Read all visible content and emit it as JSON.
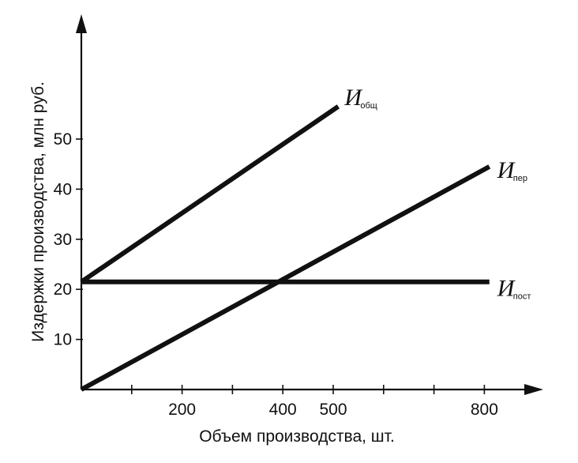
{
  "chart_data": {
    "type": "line",
    "xlabel": "Объем производства, шт.",
    "ylabel": "Издержки производства,  млн руб.",
    "xlim": [
      0,
      880
    ],
    "ylim": [
      0,
      62
    ],
    "x_ticks": [
      100,
      200,
      300,
      400,
      500,
      600,
      700,
      800
    ],
    "x_tick_labels": [
      {
        "value": 200,
        "label": "200"
      },
      {
        "value": 400,
        "label": "400"
      },
      {
        "value": 500,
        "label": "500"
      },
      {
        "value": 800,
        "label": "800"
      }
    ],
    "y_ticks": [
      {
        "value": 10,
        "label": "10"
      },
      {
        "value": 20,
        "label": "20"
      },
      {
        "value": 30,
        "label": "30"
      },
      {
        "value": 40,
        "label": "40"
      },
      {
        "value": 50,
        "label": "50"
      }
    ],
    "grid": false,
    "series": [
      {
        "name_main": "И",
        "name_sub": "общ",
        "x": [
          0,
          510
        ],
        "y": [
          21.5,
          56.5
        ]
      },
      {
        "name_main": "И",
        "name_sub": "пер",
        "x": [
          0,
          810
        ],
        "y": [
          0,
          44.5
        ]
      },
      {
        "name_main": "И",
        "name_sub": "пост",
        "x": [
          0,
          810
        ],
        "y": [
          21.5,
          21.5
        ]
      }
    ]
  }
}
